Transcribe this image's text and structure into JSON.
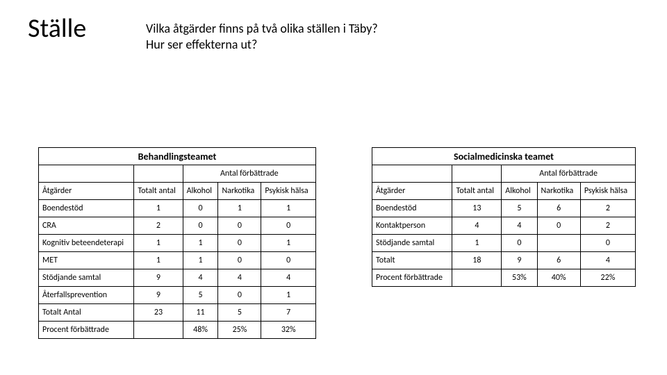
{
  "title": "Ställe",
  "subtitle_line1": "Vilka åtgärder finns på två olika ställen i Täby?",
  "subtitle_line2": "Hur ser effekterna ut?",
  "shared": {
    "antal_forbattrade": "Antal förbättrade",
    "atgarder": "Åtgärder",
    "totalt_antal": "Totalt antal",
    "alkohol": "Alkohol",
    "narkotika": "Narkotika",
    "psykisk_halsa": "Psykisk hälsa",
    "procent_forbattrade": "Procent förbättrade"
  },
  "left": {
    "team": "Behandlingsteamet",
    "rows": [
      {
        "label": "Boendestöd",
        "tot": "1",
        "a": "0",
        "n": "1",
        "p": "1"
      },
      {
        "label": "CRA",
        "tot": "2",
        "a": "0",
        "n": "0",
        "p": "0"
      },
      {
        "label": "Kognitiv beteendeterapi",
        "tot": "1",
        "a": "1",
        "n": "0",
        "p": "1"
      },
      {
        "label": "MET",
        "tot": "1",
        "a": "1",
        "n": "0",
        "p": "0"
      },
      {
        "label": "Stödjande samtal",
        "tot": "9",
        "a": "4",
        "n": "4",
        "p": "4"
      },
      {
        "label": "Återfallsprevention",
        "tot": "9",
        "a": "5",
        "n": "0",
        "p": "1"
      },
      {
        "label": "Totalt Antal",
        "tot": "23",
        "a": "11",
        "n": "5",
        "p": "7"
      }
    ],
    "pct": {
      "a": "48%",
      "n": "25%",
      "p": "32%"
    }
  },
  "right": {
    "team": "Socialmedicinska teamet",
    "rows": [
      {
        "label": "Boendestöd",
        "tot": "13",
        "a": "5",
        "n": "6",
        "p": "2"
      },
      {
        "label": "Kontaktperson",
        "tot": "4",
        "a": "4",
        "n": "0",
        "p": "2"
      },
      {
        "label": "Stödjande samtal",
        "tot": "1",
        "a": "0",
        "n": "",
        "p": "0"
      },
      {
        "label": "Totalt",
        "tot": "18",
        "a": "9",
        "n": "6",
        "p": "4"
      }
    ],
    "pct": {
      "a": "53%",
      "n": "40%",
      "p": "22%"
    }
  }
}
